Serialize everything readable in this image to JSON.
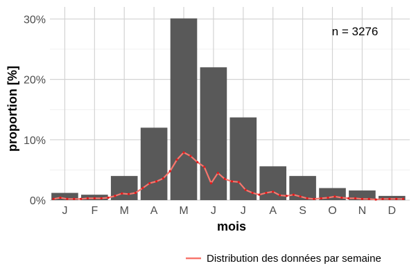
{
  "chart_data": {
    "type": "bar",
    "xlabel": "mois",
    "ylabel": "proportion [%]",
    "categories": [
      "J",
      "F",
      "M",
      "A",
      "M",
      "J",
      "J",
      "A",
      "S",
      "O",
      "N",
      "D"
    ],
    "values": [
      1.2,
      0.9,
      4.0,
      12.0,
      30.1,
      22.0,
      13.7,
      5.6,
      4.0,
      2.0,
      1.6,
      0.7
    ],
    "ylim": [
      0,
      32
    ],
    "yticks": [
      0,
      10,
      20,
      30
    ],
    "ytick_labels": [
      "0%",
      "10%",
      "20%",
      "30%"
    ],
    "grid": true,
    "annotation": "n = 3276",
    "bar_color": "#595959",
    "line_series": {
      "name": "Distribution des données par semaine",
      "color": "#f8766d",
      "point_color": "#e41a1c",
      "x": [
        0.62,
        0.85,
        1.08,
        1.31,
        1.54,
        1.77,
        2.0,
        2.23,
        2.46,
        2.69,
        2.92,
        3.15,
        3.38,
        3.62,
        3.85,
        4.08,
        4.31,
        4.54,
        4.77,
        5.0,
        5.23,
        5.46,
        5.69,
        5.92,
        6.15,
        6.38,
        6.62,
        6.85,
        7.08,
        7.31,
        7.54,
        7.77,
        8.0,
        8.23,
        8.46,
        8.69,
        8.92,
        9.15,
        9.38,
        9.62,
        9.85,
        10.08,
        10.31,
        10.54,
        10.77,
        11.0,
        11.23,
        11.46,
        11.69,
        11.92,
        12.15,
        12.38
      ],
      "values": [
        0.2,
        0.4,
        0.2,
        0.2,
        0.2,
        0.3,
        0.3,
        0.3,
        0.4,
        0.7,
        1.1,
        1.0,
        1.2,
        2.0,
        2.8,
        3.1,
        3.6,
        4.8,
        6.7,
        7.9,
        7.3,
        6.3,
        5.5,
        2.8,
        4.5,
        3.5,
        3.1,
        3.0,
        1.7,
        1.2,
        0.9,
        1.2,
        1.4,
        0.8,
        0.7,
        0.9,
        0.6,
        0.3,
        0.2,
        0.3,
        0.4,
        0.6,
        0.4,
        0.3,
        0.3,
        0.2,
        0.2,
        0.1,
        0.2,
        0.2,
        0.2,
        0.2
      ]
    }
  }
}
